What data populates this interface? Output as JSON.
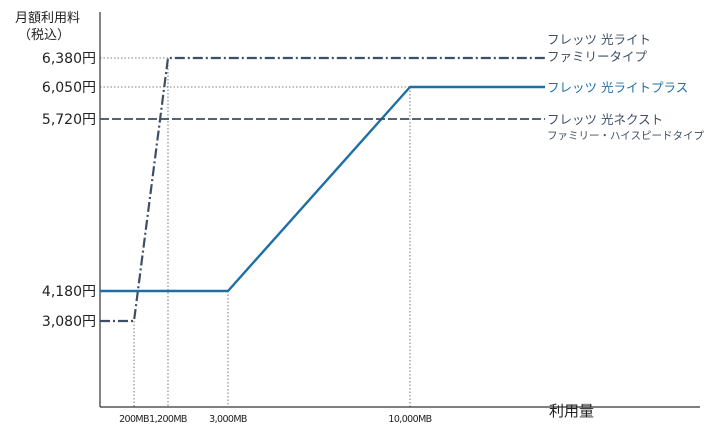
{
  "chart_data": {
    "type": "line",
    "ylabel_line1": "月額利用料",
    "ylabel_line2": "（税込）",
    "xlabel": "利用量",
    "y_ticks": [
      {
        "value": 6380,
        "label": "6,380円"
      },
      {
        "value": 6050,
        "label": "6,050円"
      },
      {
        "value": 5720,
        "label": "5,720円"
      },
      {
        "value": 4180,
        "label": "4,180円"
      },
      {
        "value": 3080,
        "label": "3,080円"
      }
    ],
    "x_ticks": [
      {
        "value": 200,
        "label": "200MB"
      },
      {
        "value": 1200,
        "label": "1,200MB"
      },
      {
        "value": 3000,
        "label": "3,000MB"
      },
      {
        "value": 10000,
        "label": "10,000MB"
      }
    ],
    "series": [
      {
        "name_line1": "フレッツ 光ライト",
        "name_line2": "ファミリータイプ",
        "style": "dash-dot",
        "color": "#3d4f66",
        "points": [
          [
            0,
            3080
          ],
          [
            200,
            3080
          ],
          [
            1200,
            6380
          ],
          [
            16000,
            6380
          ]
        ]
      },
      {
        "name_line1": "フレッツ 光ライトプラス",
        "name_line2": "",
        "style": "solid",
        "color": "#1d6fa5",
        "points": [
          [
            0,
            4180
          ],
          [
            3000,
            4180
          ],
          [
            10000,
            6050
          ],
          [
            16000,
            6050
          ]
        ]
      },
      {
        "name_line1": "フレッツ 光ネクスト",
        "name_line2": "ファミリー・ハイスピードタイプ",
        "style": "dashed",
        "color": "#3d4f66",
        "points": [
          [
            0,
            5720
          ],
          [
            16000,
            5720
          ]
        ]
      }
    ],
    "grid": "dotted guide lines at breakpoints"
  }
}
